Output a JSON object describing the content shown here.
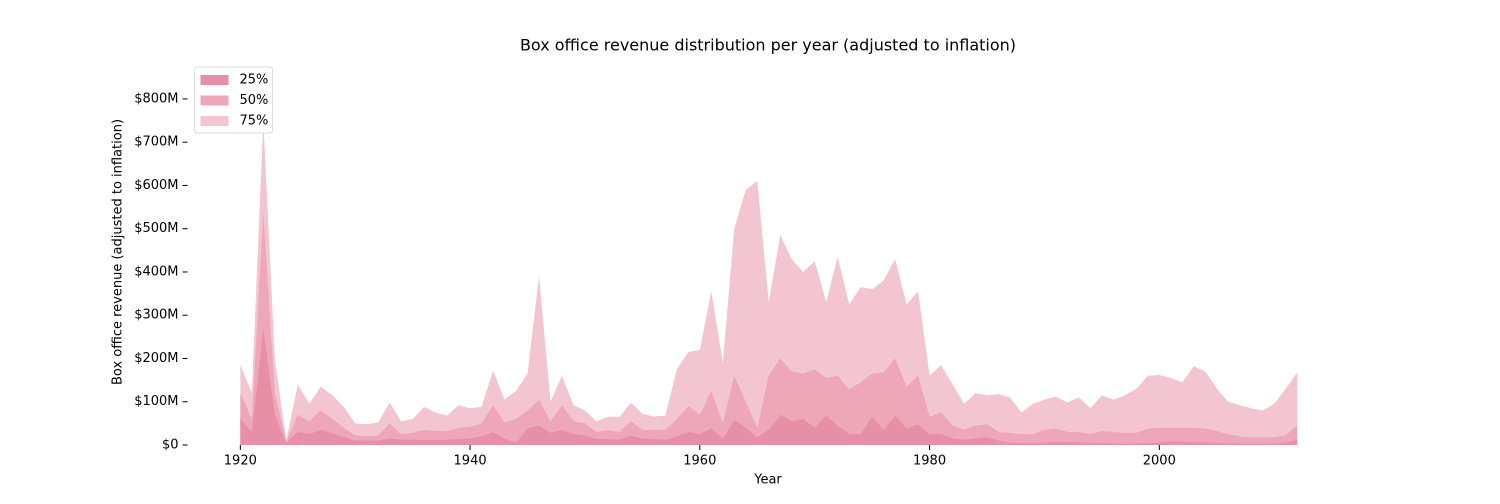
{
  "chart_data": {
    "type": "area",
    "title": "Box office revenue distribution per year (adjusted to inflation)",
    "xlabel": "Year",
    "ylabel": "Box office revenue (adjusted to inflation)",
    "x": [
      1920,
      1921,
      1922,
      1923,
      1924,
      1925,
      1926,
      1927,
      1928,
      1929,
      1930,
      1931,
      1932,
      1933,
      1934,
      1935,
      1936,
      1937,
      1938,
      1939,
      1940,
      1941,
      1942,
      1943,
      1944,
      1945,
      1946,
      1947,
      1948,
      1949,
      1950,
      1951,
      1952,
      1953,
      1954,
      1955,
      1956,
      1957,
      1958,
      1959,
      1960,
      1961,
      1962,
      1963,
      1964,
      1965,
      1966,
      1967,
      1968,
      1969,
      1970,
      1971,
      1972,
      1973,
      1974,
      1975,
      1976,
      1977,
      1978,
      1979,
      1980,
      1981,
      1982,
      1983,
      1984,
      1985,
      1986,
      1987,
      1988,
      1989,
      1990,
      1991,
      1992,
      1993,
      1994,
      1995,
      1996,
      1997,
      1998,
      1999,
      2000,
      2001,
      2002,
      2003,
      2004,
      2005,
      2006,
      2007,
      2008,
      2009,
      2010,
      2011,
      2012
    ],
    "series": [
      {
        "name": "25%",
        "color": "#e88fa8",
        "values": [
          60000000.0,
          30000000.0,
          270000000.0,
          70000000.0,
          5000000.0,
          30000000.0,
          25000000.0,
          35000000.0,
          28000000.0,
          18000000.0,
          10000000.0,
          10000000.0,
          10000000.0,
          15000000.0,
          12000000.0,
          12000000.0,
          12000000.0,
          12000000.0,
          12000000.0,
          14000000.0,
          15000000.0,
          20000000.0,
          30000000.0,
          15000000.0,
          5000000.0,
          38000000.0,
          45000000.0,
          28000000.0,
          35000000.0,
          25000000.0,
          22000000.0,
          14000000.0,
          14000000.0,
          12000000.0,
          22000000.0,
          15000000.0,
          14000000.0,
          12000000.0,
          20000000.0,
          30000000.0,
          25000000.0,
          38000000.0,
          15000000.0,
          58000000.0,
          40000000.0,
          18000000.0,
          35000000.0,
          70000000.0,
          55000000.0,
          60000000.0,
          40000000.0,
          68000000.0,
          45000000.0,
          25000000.0,
          25000000.0,
          65000000.0,
          35000000.0,
          68000000.0,
          38000000.0,
          48000000.0,
          25000000.0,
          25000000.0,
          15000000.0,
          12000000.0,
          15000000.0,
          18000000.0,
          10000000.0,
          5000000.0,
          5000000.0,
          5000000.0,
          5000000.0,
          8000000.0,
          6000000.0,
          6000000.0,
          5000000.0,
          5000000.0,
          4000000.0,
          3000000.0,
          4000000.0,
          5000000.0,
          5000000.0,
          8000000.0,
          8000000.0,
          6000000.0,
          6000000.0,
          5000000.0,
          4000000.0,
          3000000.0,
          3000000.0,
          3000000.0,
          3000000.0,
          5000000.0,
          12000000.0
        ]
      },
      {
        "name": "50%",
        "color": "#eda7b9",
        "values": [
          120000000.0,
          60000000.0,
          540000000.0,
          120000000.0,
          8000000.0,
          70000000.0,
          55000000.0,
          80000000.0,
          60000000.0,
          40000000.0,
          22000000.0,
          20000000.0,
          22000000.0,
          50000000.0,
          25000000.0,
          28000000.0,
          35000000.0,
          32000000.0,
          32000000.0,
          40000000.0,
          42000000.0,
          50000000.0,
          92000000.0,
          52000000.0,
          60000000.0,
          80000000.0,
          105000000.0,
          55000000.0,
          92000000.0,
          55000000.0,
          50000000.0,
          30000000.0,
          35000000.0,
          30000000.0,
          55000000.0,
          35000000.0,
          35000000.0,
          35000000.0,
          60000000.0,
          90000000.0,
          70000000.0,
          125000000.0,
          50000000.0,
          160000000.0,
          100000000.0,
          40000000.0,
          160000000.0,
          200000000.0,
          170000000.0,
          165000000.0,
          175000000.0,
          155000000.0,
          160000000.0,
          128000000.0,
          145000000.0,
          165000000.0,
          168000000.0,
          200000000.0,
          135000000.0,
          160000000.0,
          65000000.0,
          75000000.0,
          45000000.0,
          35000000.0,
          45000000.0,
          48000000.0,
          30000000.0,
          28000000.0,
          25000000.0,
          25000000.0,
          35000000.0,
          38000000.0,
          30000000.0,
          30000000.0,
          25000000.0,
          32000000.0,
          30000000.0,
          28000000.0,
          28000000.0,
          38000000.0,
          40000000.0,
          40000000.0,
          40000000.0,
          40000000.0,
          38000000.0,
          32000000.0,
          25000000.0,
          20000000.0,
          18000000.0,
          18000000.0,
          18000000.0,
          22000000.0,
          45000000.0
        ]
      },
      {
        "name": "75%",
        "color": "#f3c5d1",
        "values": [
          185000000.0,
          120000000.0,
          750000000.0,
          200000000.0,
          10000000.0,
          140000000.0,
          95000000.0,
          135000000.0,
          115000000.0,
          88000000.0,
          50000000.0,
          48000000.0,
          52000000.0,
          98000000.0,
          55000000.0,
          60000000.0,
          88000000.0,
          75000000.0,
          68000000.0,
          92000000.0,
          85000000.0,
          88000000.0,
          172000000.0,
          105000000.0,
          125000000.0,
          165000000.0,
          390000000.0,
          100000000.0,
          160000000.0,
          92000000.0,
          80000000.0,
          55000000.0,
          65000000.0,
          65000000.0,
          98000000.0,
          72000000.0,
          66000000.0,
          68000000.0,
          175000000.0,
          215000000.0,
          220000000.0,
          355000000.0,
          190000000.0,
          500000000.0,
          590000000.0,
          610000000.0,
          330000000.0,
          485000000.0,
          430000000.0,
          400000000.0,
          425000000.0,
          330000000.0,
          435000000.0,
          325000000.0,
          365000000.0,
          360000000.0,
          380000000.0,
          430000000.0,
          325000000.0,
          355000000.0,
          160000000.0,
          185000000.0,
          140000000.0,
          95000000.0,
          120000000.0,
          115000000.0,
          118000000.0,
          110000000.0,
          75000000.0,
          95000000.0,
          105000000.0,
          112000000.0,
          98000000.0,
          110000000.0,
          85000000.0,
          115000000.0,
          105000000.0,
          115000000.0,
          130000000.0,
          160000000.0,
          162000000.0,
          155000000.0,
          145000000.0,
          182000000.0,
          170000000.0,
          130000000.0,
          100000000.0,
          92000000.0,
          85000000.0,
          80000000.0,
          95000000.0,
          130000000.0,
          168000000.0
        ]
      }
    ],
    "xlim": [
      1915.4,
      2016.6
    ],
    "xticks": [
      1920,
      1940,
      1960,
      1980,
      2000
    ],
    "ylim": [
      0,
      890000000.0
    ],
    "yticks": [
      {
        "value": 0,
        "label": "$0"
      },
      {
        "value": 100000000.0,
        "label": "$100M"
      },
      {
        "value": 200000000.0,
        "label": "$200M"
      },
      {
        "value": 300000000.0,
        "label": "$300M"
      },
      {
        "value": 400000000.0,
        "label": "$400M"
      },
      {
        "value": 500000000.0,
        "label": "$500M"
      },
      {
        "value": 600000000.0,
        "label": "$600M"
      },
      {
        "value": 700000000.0,
        "label": "$700M"
      },
      {
        "value": 800000000.0,
        "label": "$800M"
      }
    ],
    "legend": "upper left"
  }
}
